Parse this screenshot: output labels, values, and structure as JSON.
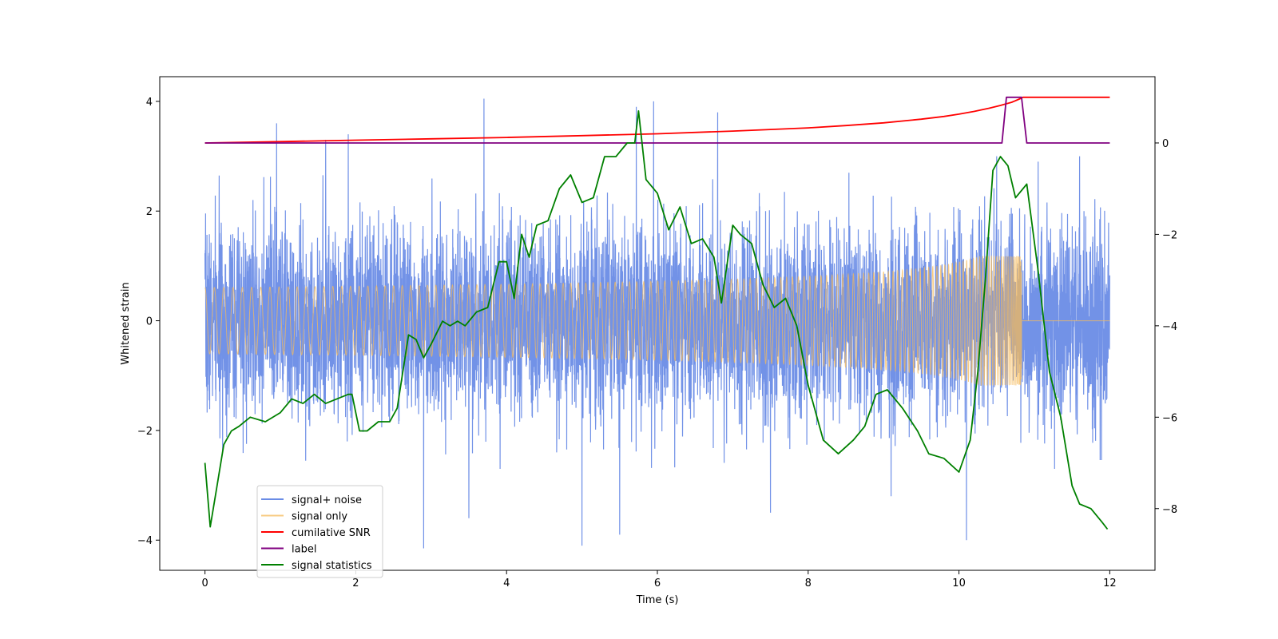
{
  "chart_data": {
    "type": "line",
    "title": "",
    "xlabel": "Time (s)",
    "ylabel": "Whitened strain",
    "y2label": "",
    "xlim": [
      -0.6,
      12.6
    ],
    "ylim": [
      -4.55,
      4.45
    ],
    "y2lim": [
      -9.35,
      1.45
    ],
    "xticks": [
      0,
      2,
      4,
      6,
      8,
      10,
      12
    ],
    "yticks": [
      -4,
      -2,
      0,
      2,
      4
    ],
    "y2ticks": [
      -8,
      -6,
      -4,
      -2,
      0
    ],
    "legend_location": "lower-left",
    "series": [
      {
        "name": "signal+ noise",
        "axis": "left",
        "color": "#6a8ce6",
        "kind": "noise",
        "x_range": [
          0,
          12
        ],
        "std": 0.85,
        "seed": 7,
        "spikes": [
          [
            0.95,
            3.6
          ],
          [
            1.6,
            3.3
          ],
          [
            1.9,
            3.4
          ],
          [
            3.7,
            4.05
          ],
          [
            5.0,
            -4.1
          ],
          [
            5.72,
            3.9
          ],
          [
            5.95,
            4.0
          ],
          [
            6.8,
            3.8
          ],
          [
            7.5,
            -3.5
          ],
          [
            9.1,
            -3.2
          ],
          [
            10.1,
            -4.0
          ],
          [
            10.5,
            3.0
          ],
          [
            11.05,
            2.9
          ],
          [
            11.6,
            3.0
          ],
          [
            2.9,
            -4.15
          ],
          [
            3.5,
            -3.6
          ],
          [
            5.5,
            -3.9
          ]
        ]
      },
      {
        "name": "signal only",
        "axis": "left",
        "color": "#f5b95a",
        "kind": "chirp",
        "t_merge": 10.83,
        "amp_max": 1.18
      },
      {
        "name": "cumilative SNR",
        "axis": "right",
        "color": "#ff0000",
        "x": [
          0,
          1,
          2,
          3,
          4,
          5,
          6,
          7,
          8,
          8.5,
          9,
          9.5,
          9.8,
          10,
          10.2,
          10.4,
          10.55,
          10.7,
          10.8,
          10.85,
          12
        ],
        "values": [
          0.0,
          0.03,
          0.06,
          0.09,
          0.12,
          0.16,
          0.2,
          0.26,
          0.33,
          0.38,
          0.44,
          0.52,
          0.58,
          0.63,
          0.69,
          0.76,
          0.82,
          0.89,
          0.96,
          1.0,
          1.0
        ]
      },
      {
        "name": "label",
        "axis": "right",
        "color": "#800080",
        "x": [
          0,
          10.57,
          10.63,
          10.83,
          10.9,
          12
        ],
        "values": [
          0,
          0,
          1,
          1,
          0,
          0
        ]
      },
      {
        "name": "signal statistics",
        "axis": "right",
        "color": "#008000",
        "x": [
          0,
          0.07,
          0.15,
          0.25,
          0.35,
          0.45,
          0.6,
          0.8,
          1.0,
          1.15,
          1.3,
          1.45,
          1.6,
          1.75,
          1.9,
          1.95,
          2.05,
          2.15,
          2.3,
          2.45,
          2.55,
          2.7,
          2.8,
          2.9,
          3.0,
          3.15,
          3.25,
          3.35,
          3.45,
          3.6,
          3.75,
          3.9,
          4.0,
          4.1,
          4.2,
          4.3,
          4.4,
          4.55,
          4.7,
          4.85,
          5.0,
          5.15,
          5.3,
          5.45,
          5.6,
          5.7,
          5.75,
          5.85,
          6.0,
          6.15,
          6.3,
          6.45,
          6.6,
          6.75,
          6.85,
          7.0,
          7.1,
          7.25,
          7.4,
          7.55,
          7.7,
          7.85,
          8.0,
          8.2,
          8.4,
          8.6,
          8.75,
          8.9,
          9.05,
          9.25,
          9.45,
          9.6,
          9.8,
          10.0,
          10.15,
          10.25,
          10.35,
          10.45,
          10.55,
          10.65,
          10.75,
          10.9,
          11.05,
          11.2,
          11.35,
          11.5,
          11.6,
          11.75,
          11.9,
          11.97
        ],
        "values": [
          -7.0,
          -8.4,
          -7.6,
          -6.6,
          -6.3,
          -6.2,
          -6.0,
          -6.1,
          -5.9,
          -5.6,
          -5.7,
          -5.5,
          -5.7,
          -5.6,
          -5.5,
          -5.5,
          -6.3,
          -6.3,
          -6.1,
          -6.1,
          -5.8,
          -4.2,
          -4.3,
          -4.7,
          -4.4,
          -3.9,
          -4.0,
          -3.9,
          -4.0,
          -3.7,
          -3.6,
          -2.6,
          -2.6,
          -3.4,
          -2.0,
          -2.5,
          -1.8,
          -1.7,
          -1.0,
          -0.7,
          -1.3,
          -1.2,
          -0.3,
          -0.3,
          0.0,
          0.0,
          0.7,
          -0.8,
          -1.1,
          -1.9,
          -1.4,
          -2.2,
          -2.1,
          -2.5,
          -3.5,
          -1.8,
          -2.0,
          -2.2,
          -3.1,
          -3.6,
          -3.4,
          -4.0,
          -5.3,
          -6.5,
          -6.8,
          -6.5,
          -6.2,
          -5.5,
          -5.4,
          -5.8,
          -6.3,
          -6.8,
          -6.9,
          -7.2,
          -6.5,
          -5.0,
          -3.0,
          -0.6,
          -0.3,
          -0.5,
          -1.2,
          -0.9,
          -2.8,
          -5.0,
          -6.0,
          -7.5,
          -7.9,
          -8.0,
          -8.3,
          -8.45
        ]
      }
    ]
  }
}
